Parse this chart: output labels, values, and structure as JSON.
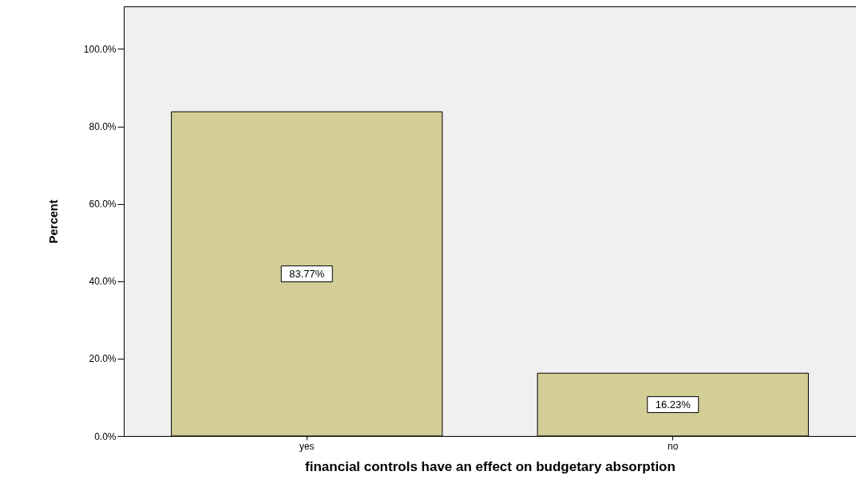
{
  "chart_data": {
    "type": "bar",
    "xlabel": "financial controls have an effect on budgetary absorption",
    "ylabel": "Percent",
    "categories": [
      "yes",
      "no"
    ],
    "values": [
      83.77,
      16.23
    ],
    "value_labels": [
      "83.77%",
      "16.23%"
    ],
    "color": "#d3cd96",
    "ylim": [
      0,
      111
    ],
    "yticks": [
      {
        "value": 0,
        "label": "0.0%"
      },
      {
        "value": 20,
        "label": "20.0%"
      },
      {
        "value": 40,
        "label": "40.0%"
      },
      {
        "value": 60,
        "label": "60.0%"
      },
      {
        "value": 80,
        "label": "80.0%"
      },
      {
        "value": 100,
        "label": "100.0%"
      }
    ],
    "grid": false
  }
}
